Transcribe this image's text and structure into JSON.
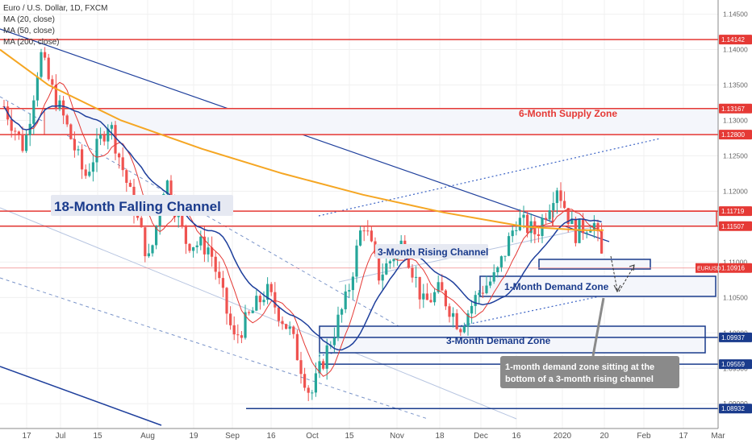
{
  "chart_data": {
    "type": "candlestick",
    "title": "Euro / U.S. Dollar, 1D, FXCM",
    "indicators": [
      "MA (20, close)",
      "MA (50, close)",
      "MA (200, close)"
    ],
    "x_tick_labels": [
      "17",
      "Jul",
      "15",
      "Aug",
      "19",
      "Sep",
      "16",
      "Oct",
      "15",
      "Nov",
      "18",
      "Dec",
      "16",
      "2020",
      "20",
      "Feb",
      "17",
      "Mar"
    ],
    "y_axis_labels": [
      "1.14500",
      "1.14000",
      "1.13500",
      "1.13000",
      "1.12500",
      "1.12000",
      "1.11500",
      "1.11000",
      "1.10500",
      "1.10000",
      "1.09500",
      "1.09000"
    ],
    "ylim": [
      1.0865,
      1.147
    ],
    "key_levels": [
      {
        "value": 1.14142,
        "label": "1.14142",
        "color": "#e53935"
      },
      {
        "value": 1.13167,
        "label": "1.13167",
        "color": "#e53935"
      },
      {
        "value": 1.128,
        "label": "1.12800",
        "color": "#e53935"
      },
      {
        "value": 1.11719,
        "label": "1.11719",
        "color": "#e53935"
      },
      {
        "value": 1.11507,
        "label": "1.11507",
        "color": "#e53935"
      },
      {
        "value": 1.10916,
        "label": "1.10916",
        "color": "#e53935"
      },
      {
        "value": 1.09937,
        "label": "1.09937",
        "color": "#1a3b8c"
      },
      {
        "value": 1.09559,
        "label": "1.09559",
        "color": "#1a3b8c"
      },
      {
        "value": 1.08932,
        "label": "1.08932",
        "color": "#1a3b8c"
      }
    ],
    "current_price_tag": "EURUSD",
    "annotations": {
      "supply_zone": "6-Month Supply Zone",
      "falling_channel": "18-Month Falling Channel",
      "rising_channel": "3-Month Rising Channel",
      "demand_1m": "1-Month Demand Zone",
      "demand_3m": "3-Month Demand Zone",
      "callout": "1-month demand zone sitting at the bottom of a 3-month rising channel"
    },
    "colors": {
      "up": "#26a69a",
      "down": "#ef5350",
      "ma20": "#e53935",
      "ma50": "#1e3f9c",
      "ma200": "#f5a623",
      "supply": "#e53935",
      "demand": "#1a3b8c",
      "callout_bg": "#8a8a8a"
    }
  }
}
